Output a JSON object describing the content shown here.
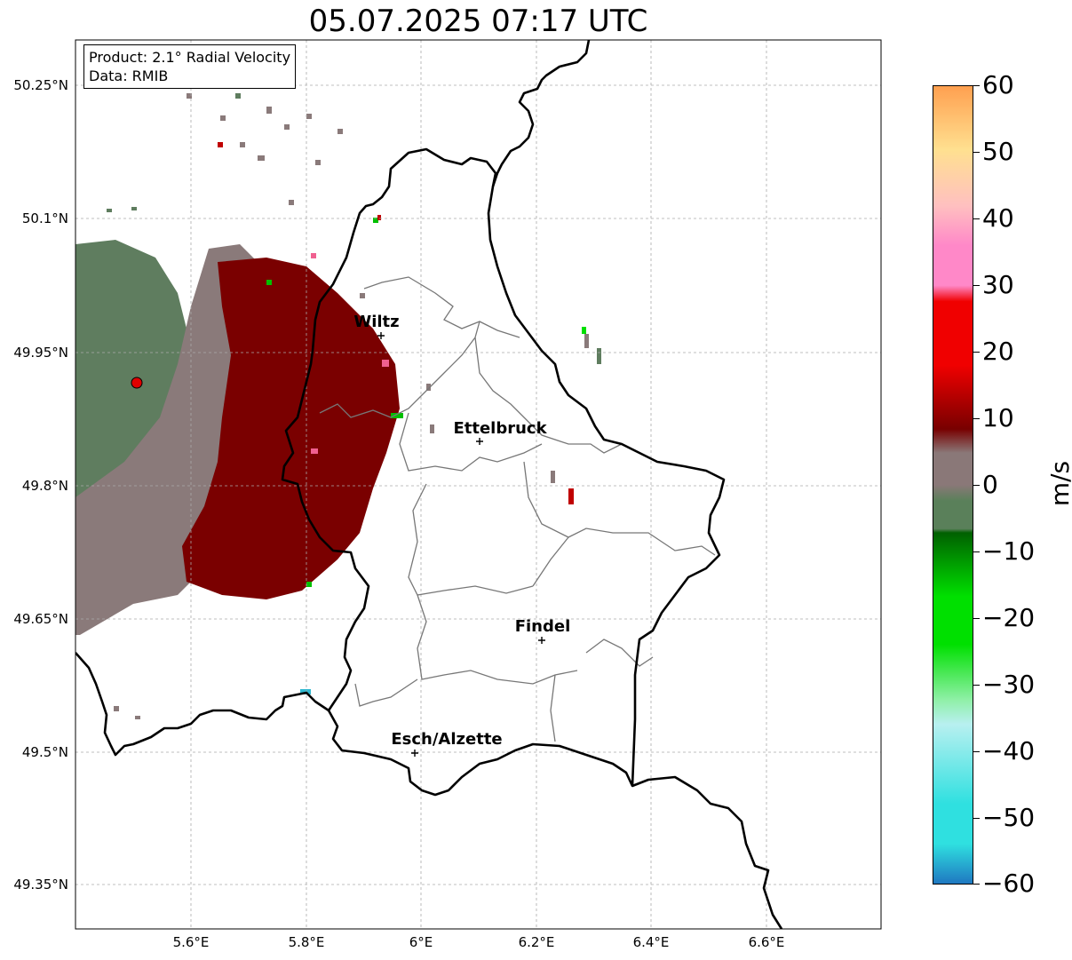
{
  "title": "05.07.2025 07:17 UTC",
  "info": {
    "product_line": "Product: 2.1° Radial Velocity",
    "data_line": "Data: RMIB"
  },
  "axes": {
    "lon_ticks": [
      "5.6°E",
      "5.8°E",
      "6°E",
      "6.2°E",
      "6.4°E",
      "6.6°E"
    ],
    "lat_ticks": [
      "50.25°N",
      "50.1°N",
      "49.95°N",
      "49.8°N",
      "49.65°N",
      "49.5°N",
      "49.35°N"
    ]
  },
  "cities": [
    {
      "name": "Wiltz"
    },
    {
      "name": "Ettelbruck"
    },
    {
      "name": "Findel"
    },
    {
      "name": "Esch/Alzette"
    }
  ],
  "colorbar": {
    "unit": "m/s",
    "ticks": [
      "60",
      "50",
      "40",
      "30",
      "20",
      "10",
      "0",
      "−10",
      "−20",
      "−30",
      "−40",
      "−50",
      "−60"
    ],
    "range": [
      -60,
      60
    ],
    "colors": {
      "neg_extreme": "#1f78c1",
      "cyan": "#2fe0e0",
      "light_cyan": "#b8f0f0",
      "light_green": "#90f0a8",
      "green": "#00e000",
      "dark_green": "#006000",
      "gray_green": "#5a805a",
      "gray": "#8a7878",
      "dark_red": "#780000",
      "red": "#f00000",
      "pink": "#ff88c8",
      "light_pink": "#ffc0c0",
      "yellow": "#ffe090",
      "orange": "#ffa050"
    }
  },
  "radar": {
    "colors": {
      "gray_green": "#5f7d5f",
      "gray": "#8a7a7a",
      "dark_red": "#7a0000",
      "green": "#00c000",
      "pink": "#f06090"
    }
  }
}
